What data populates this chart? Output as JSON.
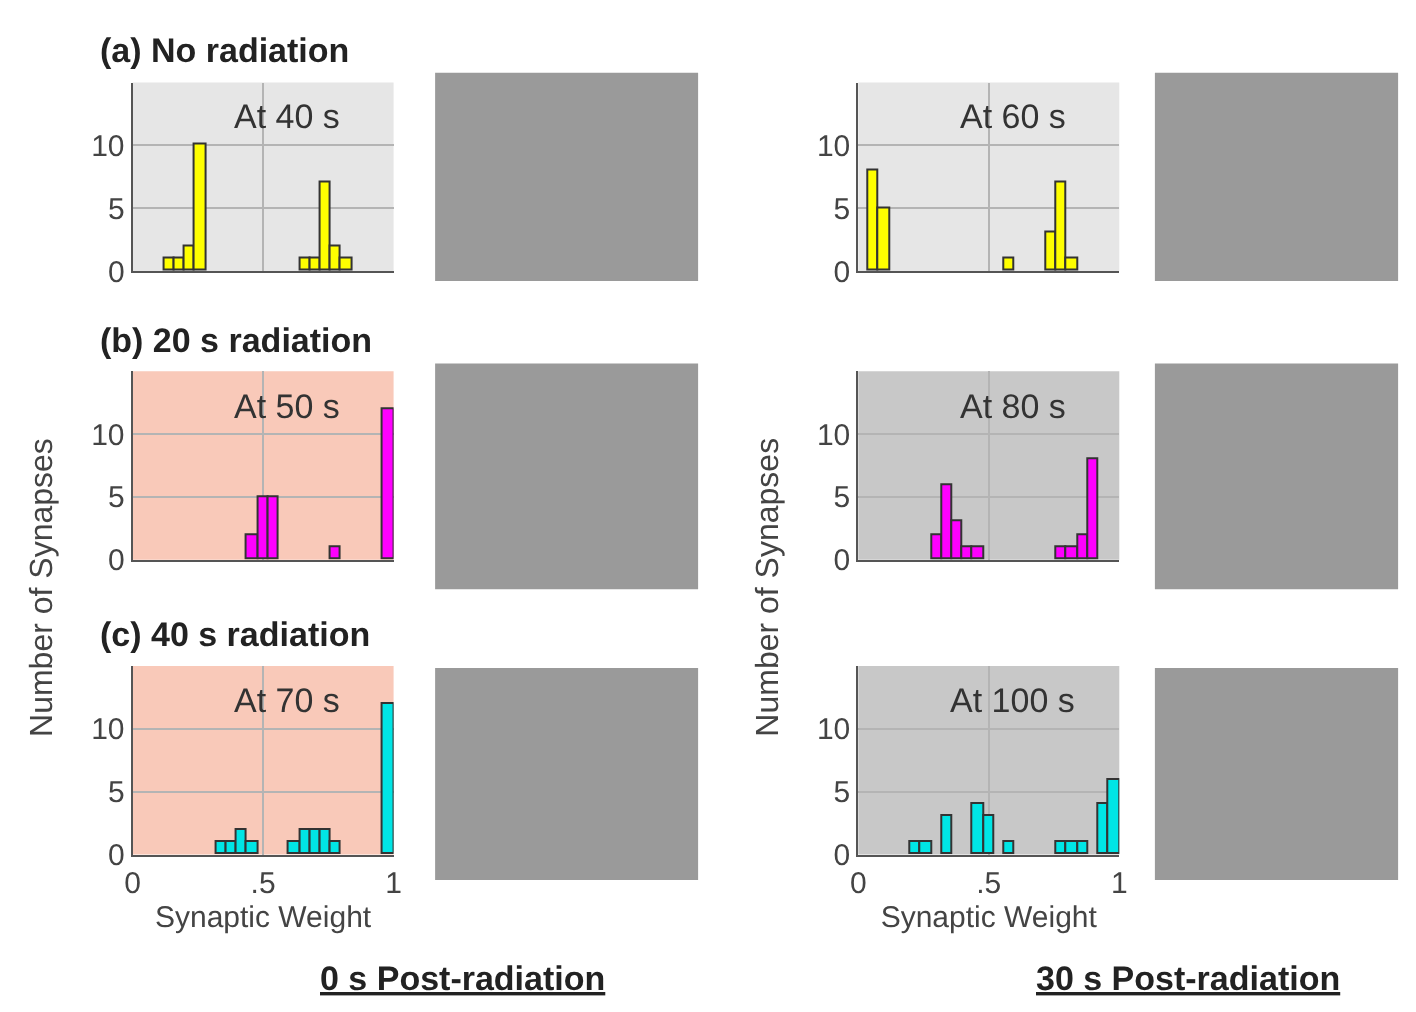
{
  "chart_data": [
    {
      "type": "histogram",
      "title": "(a) No radiation",
      "annotations": [
        "At 40 s"
      ],
      "color": "#ffff00",
      "bins": [
        0,
        0.04,
        0.08,
        0.12,
        0.16,
        0.2,
        0.24,
        0.28,
        0.32,
        0.36,
        0.4,
        0.44,
        0.48,
        0.52,
        0.56,
        0.6,
        0.64,
        0.68,
        0.72,
        0.76,
        0.8,
        0.84,
        0.88,
        0.92,
        0.96,
        1
      ],
      "values": [
        0,
        0,
        0,
        1,
        1,
        2,
        10,
        0,
        0,
        0,
        0,
        0,
        0,
        0,
        0,
        0,
        1,
        1,
        7,
        2,
        1,
        0,
        0,
        0,
        0
      ],
      "xlim": [
        0,
        1
      ],
      "ylim": [
        0,
        15
      ],
      "xticks": [
        0,
        0.5,
        1
      ],
      "yticks": [
        0,
        5,
        10
      ],
      "grid": true,
      "tick_labels": "y"
    },
    {
      "type": "histogram",
      "annotations": [
        "At 60 s"
      ],
      "color": "#ffff00",
      "bins": [
        0,
        0.04,
        0.08,
        0.12,
        0.16,
        0.2,
        0.24,
        0.28,
        0.32,
        0.36,
        0.4,
        0.44,
        0.48,
        0.52,
        0.56,
        0.6,
        0.64,
        0.68,
        0.72,
        0.76,
        0.8,
        0.84,
        0.88,
        0.92,
        0.96,
        1
      ],
      "values": [
        0,
        8,
        5,
        0,
        0,
        0,
        0,
        0,
        0,
        0,
        0,
        0,
        0,
        0,
        1,
        0,
        0,
        0,
        3,
        7,
        1,
        0,
        0,
        0,
        0
      ],
      "xlim": [
        0,
        1
      ],
      "ylim": [
        0,
        15
      ],
      "xticks": [
        0,
        0.5,
        1
      ],
      "yticks": [
        0,
        5,
        10
      ],
      "grid": true,
      "tick_labels": "y"
    },
    {
      "type": "histogram",
      "title": "(b) 20 s radiation",
      "ylabel": "Number of Synapses",
      "annotations": [
        "At 50 s"
      ],
      "color": "#ff00ff",
      "bins": [
        0,
        0.04,
        0.08,
        0.12,
        0.16,
        0.2,
        0.24,
        0.28,
        0.32,
        0.36,
        0.4,
        0.44,
        0.48,
        0.52,
        0.56,
        0.6,
        0.64,
        0.68,
        0.72,
        0.76,
        0.8,
        0.84,
        0.88,
        0.92,
        0.96,
        1
      ],
      "values": [
        0,
        0,
        0,
        0,
        0,
        0,
        0,
        0,
        0,
        0,
        0,
        2,
        5,
        5,
        0,
        0,
        0,
        0,
        0,
        1,
        0,
        0,
        0,
        0,
        12
      ],
      "xlim": [
        0,
        1
      ],
      "ylim": [
        0,
        15
      ],
      "xticks": [
        0,
        0.5,
        1
      ],
      "yticks": [
        0,
        5,
        10
      ],
      "grid": true,
      "tick_labels": "y"
    },
    {
      "type": "histogram",
      "ylabel": "Number of Synapses",
      "annotations": [
        "At 80 s"
      ],
      "color": "#ff00ff",
      "bins": [
        0,
        0.04,
        0.08,
        0.12,
        0.16,
        0.2,
        0.24,
        0.28,
        0.32,
        0.36,
        0.4,
        0.44,
        0.48,
        0.52,
        0.56,
        0.6,
        0.64,
        0.68,
        0.72,
        0.76,
        0.8,
        0.84,
        0.88,
        0.92,
        0.96,
        1
      ],
      "values": [
        0,
        0,
        0,
        0,
        0,
        0,
        0,
        2,
        6,
        3,
        1,
        1,
        0,
        0,
        0,
        0,
        0,
        0,
        0,
        1,
        1,
        2,
        8,
        0,
        0
      ],
      "xlim": [
        0,
        1
      ],
      "ylim": [
        0,
        15
      ],
      "xticks": [
        0,
        0.5,
        1
      ],
      "yticks": [
        0,
        5,
        10
      ],
      "grid": true,
      "tick_labels": "y"
    },
    {
      "type": "histogram",
      "title": "(c) 40 s radiation",
      "xlabel": "Synaptic Weight",
      "annotations": [
        "At 70 s",
        "0 s Post-radiation"
      ],
      "color": "#00e5e5",
      "bins": [
        0,
        0.04,
        0.08,
        0.12,
        0.16,
        0.2,
        0.24,
        0.28,
        0.32,
        0.36,
        0.4,
        0.44,
        0.48,
        0.52,
        0.56,
        0.6,
        0.64,
        0.68,
        0.72,
        0.76,
        0.8,
        0.84,
        0.88,
        0.92,
        0.96,
        1
      ],
      "values": [
        0,
        0,
        0,
        0,
        0,
        0,
        0,
        0,
        1,
        1,
        2,
        1,
        0,
        0,
        0,
        1,
        2,
        2,
        2,
        1,
        0,
        0,
        0,
        0,
        12
      ],
      "xlim": [
        0,
        1
      ],
      "ylim": [
        0,
        15
      ],
      "xticks": [
        0,
        {
          "value": 0.5,
          "label": ".5"
        },
        1
      ],
      "yticks": [
        0,
        5,
        10
      ],
      "grid": true
    },
    {
      "type": "histogram",
      "xlabel": "Synaptic Weight",
      "annotations": [
        "At 100 s",
        "30 s Post-radiation"
      ],
      "color": "#00e5e5",
      "bins": [
        0,
        0.04,
        0.08,
        0.12,
        0.16,
        0.2,
        0.24,
        0.28,
        0.32,
        0.36,
        0.4,
        0.44,
        0.48,
        0.52,
        0.56,
        0.6,
        0.64,
        0.68,
        0.72,
        0.76,
        0.8,
        0.84,
        0.88,
        0.92,
        0.96,
        1
      ],
      "values": [
        0,
        0,
        0,
        0,
        0,
        1,
        1,
        0,
        3,
        0,
        0,
        4,
        3,
        0,
        1,
        0,
        0,
        0,
        0,
        1,
        1,
        1,
        0,
        4,
        6
      ],
      "xlim": [
        0,
        1
      ],
      "ylim": [
        0,
        15
      ],
      "xticks": [
        0,
        {
          "value": 0.5,
          "label": ".5"
        },
        1
      ],
      "yticks": [
        0,
        5,
        10
      ],
      "grid": true
    }
  ]
}
